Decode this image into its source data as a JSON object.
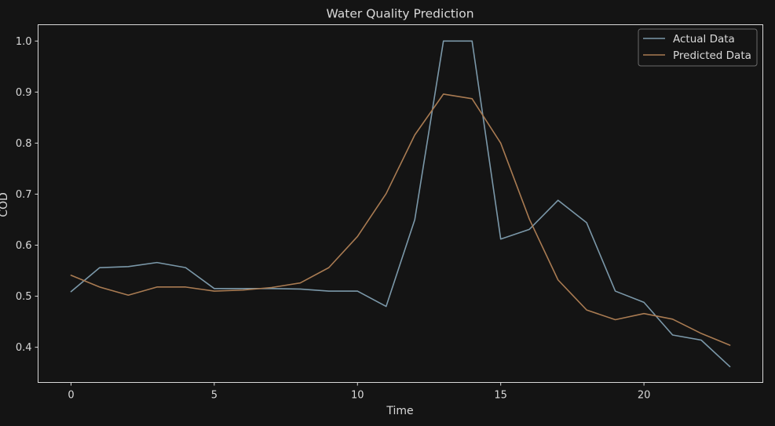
{
  "chart_data": {
    "type": "line",
    "title": "Water Quality Prediction",
    "xlabel": "Time",
    "ylabel": "COD",
    "xlim": [
      -1.15,
      24.15
    ],
    "ylim": [
      0.331,
      1.032
    ],
    "x_ticks": [
      0,
      5,
      10,
      15,
      20
    ],
    "y_ticks": [
      0.4,
      0.5,
      0.6,
      0.7,
      0.8,
      0.9,
      1.0
    ],
    "grid": false,
    "legend_position": "top-right",
    "x": [
      0,
      1,
      2,
      3,
      4,
      5,
      6,
      7,
      8,
      9,
      10,
      11,
      12,
      13,
      14,
      15,
      16,
      17,
      18,
      19,
      20,
      21,
      22,
      23
    ],
    "series": [
      {
        "name": "Actual Data",
        "color": "#7b98a9",
        "values": [
          0.509,
          0.556,
          0.558,
          0.566,
          0.556,
          0.515,
          0.515,
          0.515,
          0.514,
          0.51,
          0.51,
          0.48,
          0.65,
          1.0,
          1.0,
          0.612,
          0.631,
          0.688,
          0.644,
          0.51,
          0.488,
          0.424,
          0.414,
          0.362
        ]
      },
      {
        "name": "Predicted Data",
        "color": "#a97b52",
        "values": [
          0.541,
          0.518,
          0.502,
          0.518,
          0.518,
          0.51,
          0.512,
          0.517,
          0.526,
          0.556,
          0.617,
          0.701,
          0.816,
          0.896,
          0.887,
          0.8,
          0.651,
          0.532,
          0.473,
          0.454,
          0.466,
          0.455,
          0.427,
          0.404
        ]
      }
    ]
  }
}
